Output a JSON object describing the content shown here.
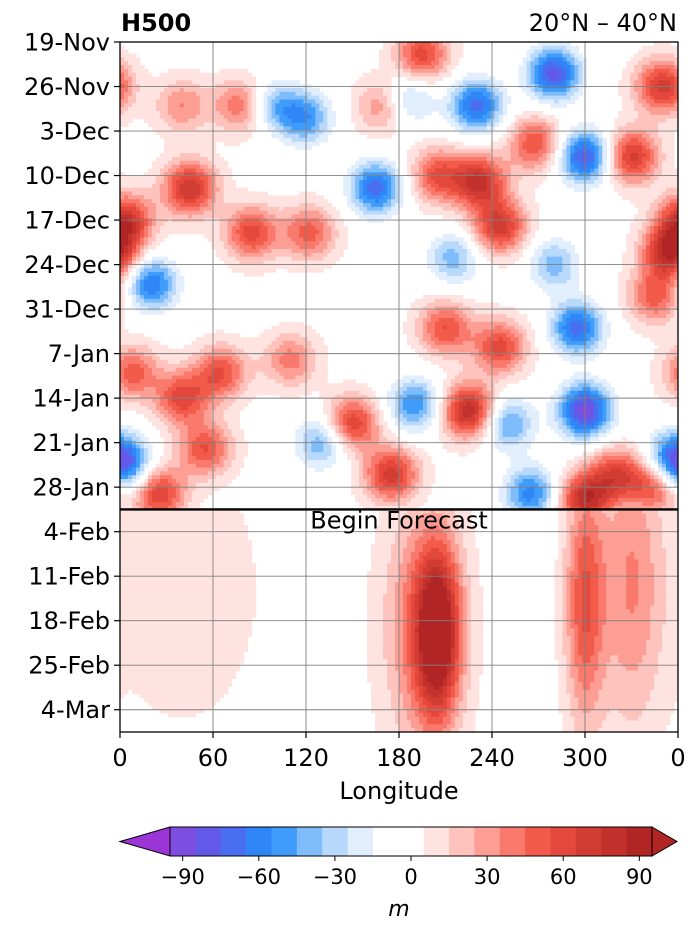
{
  "chart_data": {
    "type": "heatmap",
    "title": "H500",
    "subtitle": "20°N – 40°N",
    "xlabel": "Longitude",
    "ylabel": "",
    "x_ticks": [
      "0",
      "60",
      "120",
      "180",
      "240",
      "300",
      "0"
    ],
    "x_tick_values": [
      0,
      60,
      120,
      180,
      240,
      300,
      360
    ],
    "y_ticks": [
      "19-Nov",
      "26-Nov",
      "3-Dec",
      "10-Dec",
      "17-Dec",
      "24-Dec",
      "31-Dec",
      "7-Jan",
      "14-Jan",
      "21-Jan",
      "28-Jan",
      "4-Feb",
      "11-Feb",
      "18-Feb",
      "25-Feb",
      "4-Mar"
    ],
    "y_tick_days": [
      0,
      7,
      14,
      21,
      28,
      35,
      42,
      49,
      56,
      63,
      70,
      77,
      84,
      91,
      98,
      105
    ],
    "forecast_label": "Begin Forecast",
    "forecast_start_day": 73.5,
    "time_range_days": [
      0,
      108.5
    ],
    "grid": true,
    "colorbar": {
      "label": "m",
      "levels": [
        -105,
        -95,
        -85,
        -75,
        -65,
        -55,
        -45,
        -35,
        -25,
        -15,
        -5,
        5,
        15,
        25,
        35,
        45,
        55,
        65,
        75,
        85,
        95,
        105
      ],
      "colors": [
        "#9b35d6",
        "#7d4ee0",
        "#6259e8",
        "#4a6ef0",
        "#2e86f7",
        "#3f9cfa",
        "#7ebcfb",
        "#b8d9fb",
        "#e1eefd",
        "#ffffff",
        "#ffffff",
        "#ffe3e0",
        "#fec3bc",
        "#fc9e93",
        "#f97a6c",
        "#f25a4a",
        "#e4483c",
        "#d23d33",
        "#c2312b",
        "#b22525"
      ],
      "tick_labels": [
        "−90",
        "−60",
        "−30",
        "0",
        "30",
        "60",
        "90"
      ],
      "tick_values": [
        -90,
        -60,
        -30,
        0,
        30,
        60,
        90
      ],
      "extend": "both"
    },
    "anomaly_centers_observed": [
      {
        "lon": 4,
        "day": 28,
        "value": 70
      },
      {
        "lon": 20,
        "day": 38,
        "value": -65
      },
      {
        "lon": 8,
        "day": 52,
        "value": 50
      },
      {
        "lon": 3,
        "day": 67,
        "value": -55
      },
      {
        "lon": 25,
        "day": 71,
        "value": 65
      },
      {
        "lon": 40,
        "day": 56,
        "value": 60
      },
      {
        "lon": 45,
        "day": 23,
        "value": 75
      },
      {
        "lon": 40,
        "day": 10,
        "value": 35
      },
      {
        "lon": 65,
        "day": 52,
        "value": 55
      },
      {
        "lon": 55,
        "day": 64,
        "value": 55
      },
      {
        "lon": 110,
        "day": 50,
        "value": 40
      },
      {
        "lon": 85,
        "day": 30,
        "value": 60
      },
      {
        "lon": 78,
        "day": 10,
        "value": 45
      },
      {
        "lon": 100,
        "day": 10,
        "value": -40
      },
      {
        "lon": 120,
        "day": 12,
        "value": -50
      },
      {
        "lon": 165,
        "day": 23,
        "value": -70
      },
      {
        "lon": 185,
        "day": 9,
        "value": -40
      },
      {
        "lon": 205,
        "day": 21,
        "value": 55
      },
      {
        "lon": 195,
        "day": 2,
        "value": 60
      },
      {
        "lon": 215,
        "day": 34,
        "value": -40
      },
      {
        "lon": 230,
        "day": 10,
        "value": -70
      },
      {
        "lon": 232,
        "day": 22,
        "value": 75
      },
      {
        "lon": 245,
        "day": 29,
        "value": 70
      },
      {
        "lon": 280,
        "day": 35,
        "value": -40
      },
      {
        "lon": 295,
        "day": 45,
        "value": -70
      },
      {
        "lon": 300,
        "day": 58,
        "value": -90
      },
      {
        "lon": 268,
        "day": 16,
        "value": 55
      },
      {
        "lon": 280,
        "day": 5,
        "value": -80
      },
      {
        "lon": 300,
        "day": 18,
        "value": -80
      },
      {
        "lon": 330,
        "day": 18,
        "value": 70
      },
      {
        "lon": 355,
        "day": 33,
        "value": 85
      },
      {
        "lon": 350,
        "day": 7,
        "value": 70
      },
      {
        "lon": 345,
        "day": 40,
        "value": 50
      },
      {
        "lon": 357,
        "day": 65,
        "value": -50
      },
      {
        "lon": 345,
        "day": 70,
        "value": 55
      },
      {
        "lon": 150,
        "day": 60,
        "value": 65
      },
      {
        "lon": 175,
        "day": 68,
        "value": 70
      },
      {
        "lon": 190,
        "day": 57,
        "value": -55
      },
      {
        "lon": 225,
        "day": 58,
        "value": 85
      },
      {
        "lon": 250,
        "day": 60,
        "value": -50
      },
      {
        "lon": 265,
        "day": 71,
        "value": -60
      },
      {
        "lon": 300,
        "day": 72,
        "value": 80
      },
      {
        "lon": 210,
        "day": 45,
        "value": 55
      },
      {
        "lon": 245,
        "day": 48,
        "value": 60
      },
      {
        "lon": 130,
        "day": 63,
        "value": -45
      },
      {
        "lon": 122,
        "day": 30,
        "value": 50
      },
      {
        "lon": 320,
        "day": 68,
        "value": 60
      },
      {
        "lon": 170,
        "day": 10,
        "value": 40
      }
    ],
    "anomaly_bands_forecast": [
      {
        "lon": 205,
        "lon_width": 28,
        "day": 93,
        "day_width": 17,
        "value": 90
      },
      {
        "lon": 195,
        "lon_width": 50,
        "day": 92,
        "day_width": 25,
        "value": 40
      },
      {
        "lon": 300,
        "lon_width": 25,
        "day": 88,
        "day_width": 25,
        "value": 55
      },
      {
        "lon": 330,
        "lon_width": 40,
        "day": 85,
        "day_width": 30,
        "value": 35
      },
      {
        "lon": 40,
        "lon_width": 90,
        "day": 86,
        "day_width": 25,
        "value": 15
      },
      {
        "lon": 265,
        "lon_width": 20,
        "day": 82,
        "day_width": 15,
        "value": -10
      }
    ]
  }
}
